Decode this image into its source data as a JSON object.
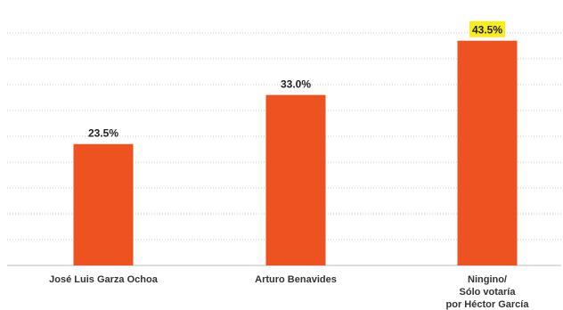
{
  "chart_data": {
    "type": "bar",
    "categories": [
      [
        "José Luis Garza Ochoa"
      ],
      [
        "Arturo Benavides"
      ],
      [
        "Ningino/",
        "Sólo votaría",
        "por Héctor García"
      ]
    ],
    "values": [
      23.5,
      33.0,
      43.5
    ],
    "data_labels": [
      "23.5%",
      "33.0%",
      "43.5%"
    ],
    "highlighted_index": 2,
    "ylim": [
      0,
      50
    ],
    "grid": true,
    "legend": "none"
  },
  "colors": {
    "bar": "#ee5220",
    "grid": "#cccccc",
    "baseline": "#bbbbbb",
    "highlight": "#f8ec1c"
  }
}
